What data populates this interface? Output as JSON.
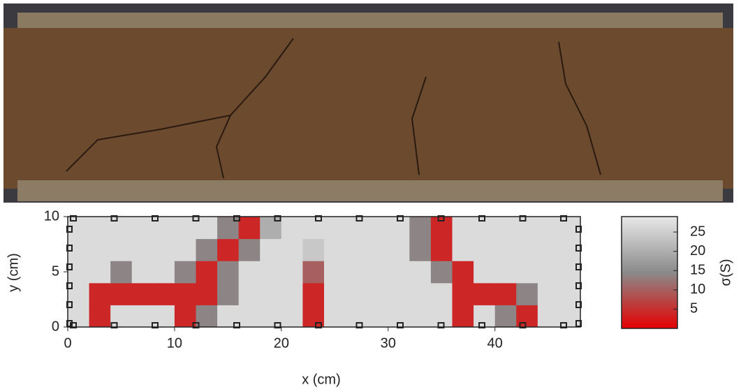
{
  "chart_data": {
    "type": "heatmap",
    "x_label": "x (cm)",
    "y_label": "y (cm)",
    "colorbar_label": "σ(S)",
    "xlim": [
      0,
      48
    ],
    "ylim": [
      0,
      10
    ],
    "xticks": [
      0,
      10,
      20,
      30,
      40
    ],
    "yticks": [
      0,
      5,
      10
    ],
    "clim": [
      0,
      29
    ],
    "cticks": [
      5,
      10,
      15,
      20,
      25
    ],
    "colormap": [
      "#e60000",
      "#8a8a8a",
      "#e8e8e8"
    ],
    "z": [
      [
        27,
        4,
        27,
        27,
        27,
        4,
        14,
        27,
        27,
        27,
        27,
        4,
        27,
        27,
        27,
        27,
        27,
        27,
        4,
        27,
        14,
        4,
        27,
        27
      ],
      [
        27,
        4,
        4,
        4,
        4,
        4,
        4,
        14,
        27,
        27,
        27,
        4,
        27,
        27,
        27,
        27,
        27,
        27,
        4,
        4,
        4,
        14,
        27,
        27
      ],
      [
        27,
        27,
        14,
        27,
        27,
        14,
        4,
        14,
        27,
        27,
        27,
        10,
        27,
        27,
        27,
        27,
        27,
        14,
        4,
        27,
        27,
        27,
        27,
        27
      ],
      [
        27,
        27,
        27,
        27,
        27,
        27,
        14,
        4,
        14,
        27,
        27,
        24,
        27,
        27,
        27,
        27,
        14,
        4,
        27,
        27,
        27,
        27,
        27,
        27
      ],
      [
        27,
        27,
        27,
        27,
        27,
        27,
        27,
        14,
        4,
        20,
        27,
        27,
        27,
        27,
        27,
        27,
        14,
        4,
        27,
        27,
        27,
        27,
        27,
        27
      ]
    ]
  }
}
